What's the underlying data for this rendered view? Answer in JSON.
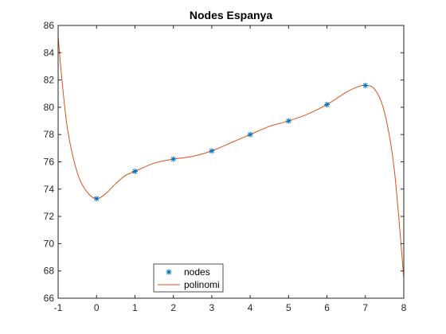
{
  "chart_data": {
    "type": "line",
    "title": "Nodes Espanya",
    "xlabel": "",
    "ylabel": "",
    "xlim": [
      -1,
      8
    ],
    "ylim": [
      66,
      86
    ],
    "xticks": [
      -1,
      0,
      1,
      2,
      3,
      4,
      5,
      6,
      7,
      8
    ],
    "yticks": [
      66,
      68,
      70,
      72,
      74,
      76,
      78,
      80,
      82,
      84,
      86
    ],
    "grid": false,
    "legend_position": "bottom-left",
    "series": [
      {
        "name": "nodes",
        "style": "markers",
        "marker": "asterisk",
        "color": "#0072BD",
        "x": [
          0,
          1,
          2,
          3,
          4,
          5,
          6,
          7
        ],
        "y": [
          73.3,
          75.3,
          76.2,
          76.8,
          78.0,
          79.0,
          80.2,
          81.6
        ]
      },
      {
        "name": "polinomi",
        "style": "line",
        "color": "#D95319",
        "x": [
          -1,
          -0.9,
          -0.75,
          -0.5,
          -0.25,
          0,
          0.25,
          0.5,
          0.75,
          1,
          1.5,
          2,
          2.5,
          3,
          3.5,
          4,
          4.5,
          5,
          5.5,
          6,
          6.5,
          6.8,
          7,
          7.25,
          7.5,
          7.75,
          8
        ],
        "y": [
          85.2,
          82.0,
          78.3,
          75.2,
          73.8,
          73.3,
          73.7,
          74.4,
          75.0,
          75.3,
          75.9,
          76.2,
          76.4,
          76.8,
          77.4,
          78.0,
          78.6,
          79.0,
          79.5,
          80.2,
          81.1,
          81.5,
          81.6,
          81.3,
          79.6,
          75.5,
          67.5
        ]
      }
    ]
  }
}
